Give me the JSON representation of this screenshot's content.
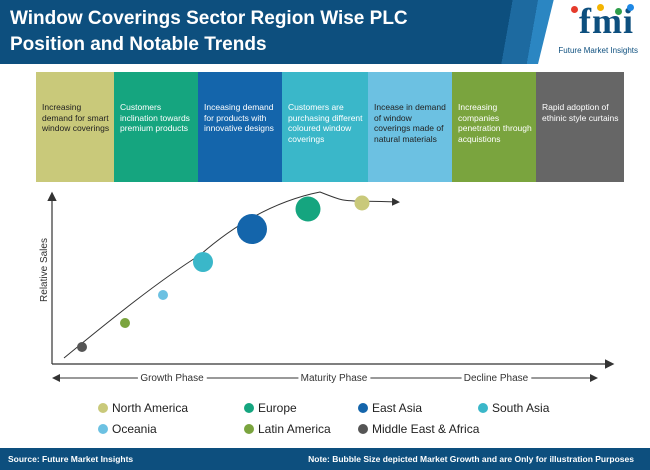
{
  "header": {
    "title_line1": "Window Coverings Sector Region Wise PLC",
    "title_line2": "Position and Notable Trends",
    "logo_text": "fmi",
    "logo_subtext": "Future Market Insights"
  },
  "trends": [
    {
      "text": "Increasing demand for smart window coverings",
      "color": "#c9c97a"
    },
    {
      "text": "Customers inclination towards premium products",
      "color": "#15a57f"
    },
    {
      "text": "Inceasing demand for products with innovative designs",
      "color": "#1465ab"
    },
    {
      "text": "Customers are purchasing different coloured window coverings",
      "color": "#3ab7c9"
    },
    {
      "text": "Incease in demand of window coverings made of natural materials",
      "color": "#6cc1e2"
    },
    {
      "text": "Increasing companies penetration through acquistions",
      "color": "#7aa43e"
    },
    {
      "text": "Rapid adoption of ethinic style curtains",
      "color": "#666666"
    }
  ],
  "chart_data": {
    "type": "scatter",
    "ylabel": "Relative Sales",
    "phases": [
      "Growth Phase",
      "Maturity Phase",
      "Decline Phase"
    ],
    "series": [
      {
        "name": "Middle East & Africa",
        "color": "#555555",
        "stage": 1,
        "size": 1
      },
      {
        "name": "Latin America",
        "color": "#7aa43e",
        "stage": 2,
        "size": 1
      },
      {
        "name": "Oceania",
        "color": "#6cc1e2",
        "stage": 3,
        "size": 1
      },
      {
        "name": "South Asia",
        "color": "#3ab7c9",
        "stage": 4,
        "size": 2
      },
      {
        "name": "East Asia",
        "color": "#1465ab",
        "stage": 5,
        "size": 3
      },
      {
        "name": "Europe",
        "color": "#15a57f",
        "stage": 6,
        "size": 2.5
      },
      {
        "name": "North America",
        "color": "#c9c97a",
        "stage": 7,
        "size": 1.5
      }
    ]
  },
  "legend": [
    {
      "label": "North America",
      "color": "#c9c97a"
    },
    {
      "label": "Europe",
      "color": "#15a57f"
    },
    {
      "label": "East Asia",
      "color": "#1465ab"
    },
    {
      "label": "South Asia",
      "color": "#3ab7c9"
    },
    {
      "label": "Oceania",
      "color": "#6cc1e2"
    },
    {
      "label": "Latin America",
      "color": "#7aa43e"
    },
    {
      "label": "Middle East & Africa",
      "color": "#555555"
    }
  ],
  "footer": {
    "source": "Source: Future Market Insights",
    "note": "Note: Bubble Size depicted Market Growth and are Only for illustration Purposes"
  }
}
